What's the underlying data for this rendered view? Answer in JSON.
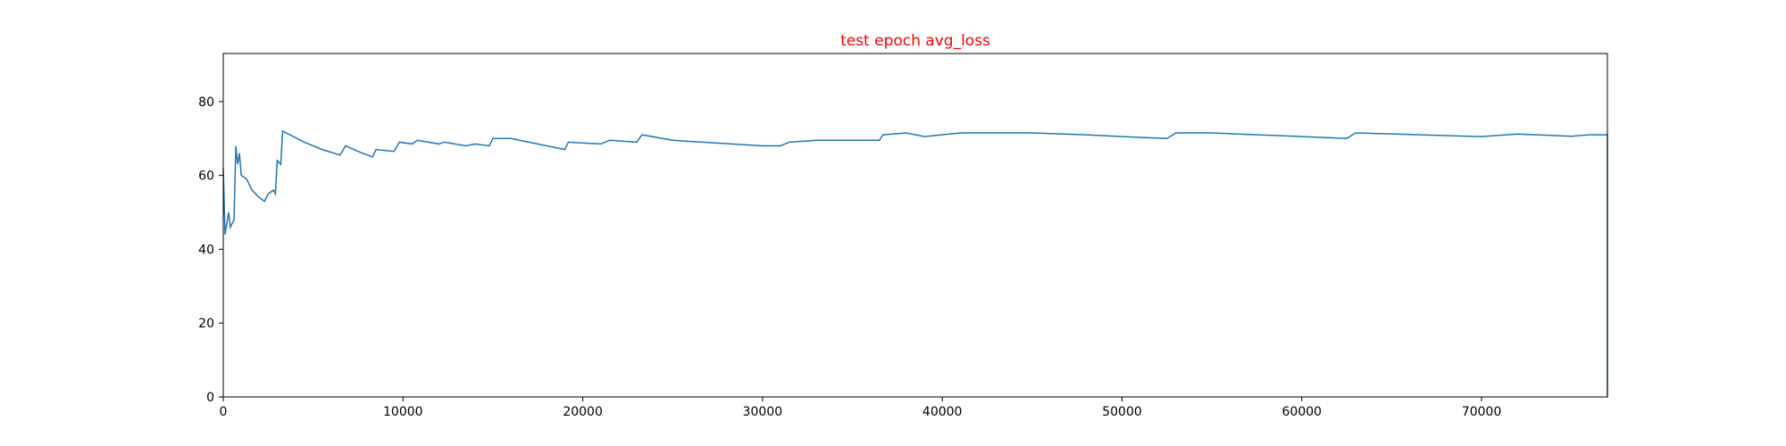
{
  "chart_data": {
    "type": "line",
    "title": "test epoch avg_loss",
    "x": [
      0,
      100,
      300,
      400,
      600,
      700,
      800,
      900,
      1000,
      1300,
      1600,
      2000,
      2300,
      2500,
      2800,
      2900,
      3000,
      3200,
      3300,
      3700,
      4500,
      5500,
      6500,
      6800,
      7500,
      8300,
      8500,
      9500,
      9800,
      10500,
      10800,
      12000,
      12300,
      13500,
      14000,
      14800,
      15000,
      16000,
      17000,
      19000,
      19200,
      21000,
      21500,
      23000,
      23300,
      25000,
      30000,
      31000,
      31500,
      33000,
      36500,
      36700,
      38000,
      39000,
      41000,
      45000,
      48000,
      50000,
      52500,
      53000,
      55000,
      60000,
      62500,
      63000,
      70000,
      72000,
      75000,
      76000,
      77000,
      77000
    ],
    "series": [
      {
        "color": "#1f77b4",
        "values": [
          62,
          44,
          50,
          46,
          48,
          68,
          63,
          66,
          60,
          59,
          56,
          54,
          53,
          55,
          56,
          55,
          64,
          63,
          72,
          71,
          69,
          67,
          65.5,
          68,
          66.5,
          65,
          67,
          66.5,
          69,
          68.5,
          69.5,
          68.5,
          69,
          68,
          68.5,
          68,
          70,
          70,
          69,
          67,
          69,
          68.5,
          69.5,
          69,
          71,
          69.5,
          68,
          68,
          69,
          69.5,
          69.5,
          71,
          71.5,
          70.5,
          71.5,
          71.5,
          71,
          70.5,
          70,
          71.5,
          71.5,
          70.5,
          70,
          71.5,
          70.5,
          71.2,
          70.6,
          71,
          71,
          0
        ]
      }
    ],
    "xlim": [
      0,
      77000
    ],
    "ylim": [
      0,
      93
    ],
    "xticks": [
      0,
      10000,
      20000,
      30000,
      40000,
      50000,
      60000,
      70000
    ],
    "yticks": [
      0,
      20,
      40,
      60,
      80
    ]
  }
}
